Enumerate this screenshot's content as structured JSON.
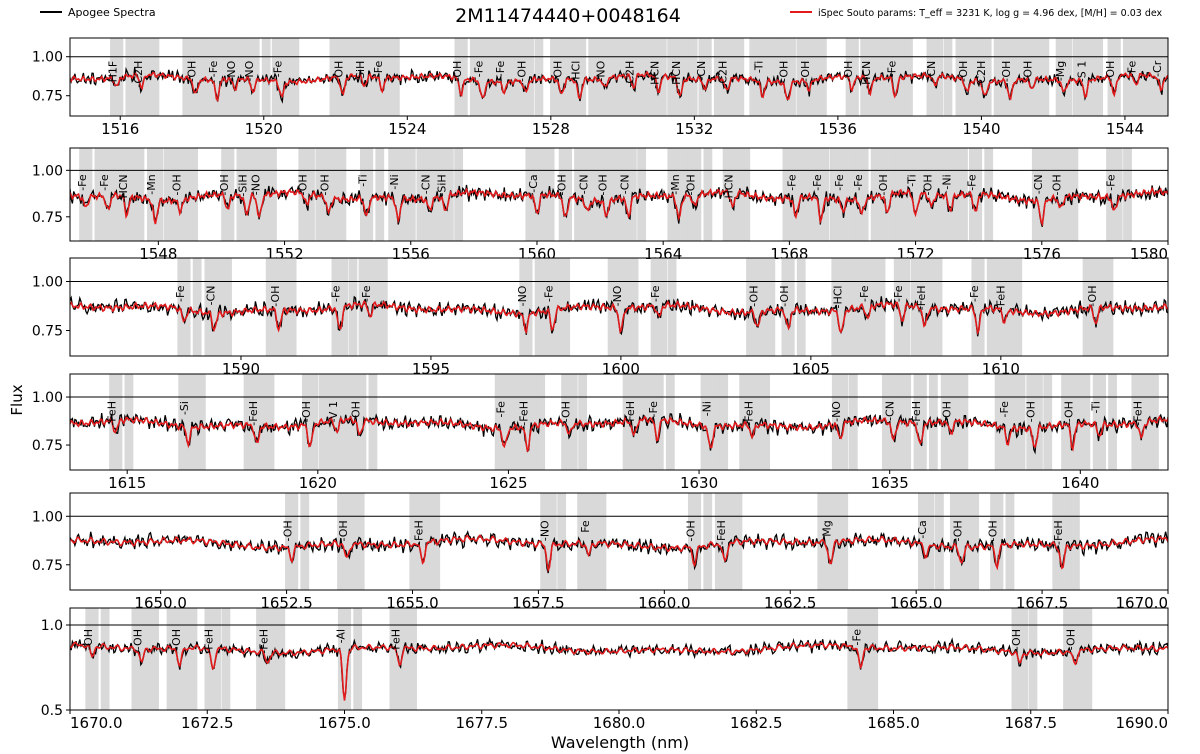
{
  "title": "2M11474440+0048164",
  "legend": {
    "observed": "Apogee Spectra",
    "model": "iSpec Souto params: T_eff = 3231 K, log g = 4.96 dex, [M/H] = 0.03 dex"
  },
  "colors": {
    "observed": "#000000",
    "model": "#e31a1c",
    "mask": "#d9d9d9"
  },
  "chart_data": {
    "type": "line",
    "title": "2M11474440+0048164",
    "xlabel": "Wavelength (nm)",
    "ylabel": "Flux",
    "series_names": [
      "Apogee Spectra",
      "iSpec Souto params: T_eff = 3231 K, log g = 4.96 dex, [M/H] = 0.03 dex"
    ],
    "legend_placement": "top",
    "panels": [
      {
        "xlim": [
          1514.6,
          1545.2
        ],
        "ylim": [
          0.62,
          1.12
        ],
        "xticks": [
          1516,
          1520,
          1524,
          1528,
          1532,
          1536,
          1540,
          1544
        ],
        "xtick_labels": [
          "1516",
          "1520",
          "1524",
          "1528",
          "1532",
          "1536",
          "1540",
          "1544"
        ],
        "yticks": [
          0.75,
          1.0
        ],
        "ytick_labels": [
          "0.75",
          "1.00"
        ],
        "lines": [
          {
            "x": 1515.9,
            "label": "-H1F"
          },
          {
            "x": 1516.6,
            "label": "-C2H"
          },
          {
            "x": 1518.1,
            "label": "-OH"
          },
          {
            "x": 1518.7,
            "label": "-Fe"
          },
          {
            "x": 1519.2,
            "label": "-NO"
          },
          {
            "x": 1519.7,
            "label": "-NO"
          },
          {
            "x": 1520.5,
            "label": "-Fe"
          },
          {
            "x": 1522.2,
            "label": "-OH"
          },
          {
            "x": 1522.8,
            "label": "-SiH"
          },
          {
            "x": 1523.3,
            "label": "-Fe"
          },
          {
            "x": 1525.5,
            "label": "-OH"
          },
          {
            "x": 1526.1,
            "label": "-Fe"
          },
          {
            "x": 1526.7,
            "label": "-Fe"
          },
          {
            "x": 1527.3,
            "label": "-OH"
          },
          {
            "x": 1528.3,
            "label": "-OH"
          },
          {
            "x": 1528.8,
            "label": "-HCl"
          },
          {
            "x": 1529.5,
            "label": "-NO"
          },
          {
            "x": 1530.3,
            "label": "-C2H"
          },
          {
            "x": 1531.0,
            "label": "-HCN"
          },
          {
            "x": 1531.6,
            "label": "-HCN"
          },
          {
            "x": 1532.3,
            "label": "-CN"
          },
          {
            "x": 1532.9,
            "label": "-C2H"
          },
          {
            "x": 1533.9,
            "label": "-Ti"
          },
          {
            "x": 1534.6,
            "label": "-OH"
          },
          {
            "x": 1535.2,
            "label": "-OH"
          },
          {
            "x": 1536.4,
            "label": "-OH"
          },
          {
            "x": 1536.9,
            "label": "-HCN"
          },
          {
            "x": 1537.6,
            "label": "-Fe"
          },
          {
            "x": 1538.7,
            "label": "-CN"
          },
          {
            "x": 1539.6,
            "label": "-OH"
          },
          {
            "x": 1540.1,
            "label": "-C2H"
          },
          {
            "x": 1540.8,
            "label": "-OH"
          },
          {
            "x": 1541.4,
            "label": "-OH"
          },
          {
            "x": 1542.3,
            "label": "-Mg"
          },
          {
            "x": 1542.9,
            "label": "-S 1"
          },
          {
            "x": 1543.7,
            "label": "-OH"
          },
          {
            "x": 1544.3,
            "label": "-Fe"
          },
          {
            "x": 1545.0,
            "label": "-Cr"
          }
        ]
      },
      {
        "xlim": [
          1545.2,
          1580.0
        ],
        "ylim": [
          0.62,
          1.12
        ],
        "xticks": [
          1548,
          1552,
          1556,
          1560,
          1564,
          1568,
          1572,
          1576,
          1580
        ],
        "xtick_labels": [
          "1548",
          "1552",
          "1556",
          "1560",
          "1564",
          "1568",
          "1572",
          "1576",
          "1580"
        ],
        "yticks": [
          0.75,
          1.0
        ],
        "ytick_labels": [
          "0.75",
          "1.00"
        ],
        "lines": [
          {
            "x": 1545.7,
            "label": "-Fe"
          },
          {
            "x": 1546.4,
            "label": "-Fe"
          },
          {
            "x": 1547.0,
            "label": "-HCN"
          },
          {
            "x": 1547.9,
            "label": "-Mn"
          },
          {
            "x": 1548.7,
            "label": "-OH"
          },
          {
            "x": 1550.2,
            "label": "-OH"
          },
          {
            "x": 1550.8,
            "label": "-SiH"
          },
          {
            "x": 1551.2,
            "label": "-NO"
          },
          {
            "x": 1552.7,
            "label": "-OH"
          },
          {
            "x": 1553.4,
            "label": "-OH"
          },
          {
            "x": 1554.6,
            "label": "-Ti"
          },
          {
            "x": 1555.6,
            "label": "-Ni"
          },
          {
            "x": 1556.6,
            "label": "-CN"
          },
          {
            "x": 1557.1,
            "label": "-SiH"
          },
          {
            "x": 1560.0,
            "label": "-Ca"
          },
          {
            "x": 1560.9,
            "label": "-OH"
          },
          {
            "x": 1561.6,
            "label": "-CN"
          },
          {
            "x": 1562.2,
            "label": "-OH"
          },
          {
            "x": 1562.9,
            "label": "-CN"
          },
          {
            "x": 1564.5,
            "label": "-Mn"
          },
          {
            "x": 1565.0,
            "label": "-OH"
          },
          {
            "x": 1566.2,
            "label": "-HCN"
          },
          {
            "x": 1568.2,
            "label": "-Fe"
          },
          {
            "x": 1569.0,
            "label": "-Fe"
          },
          {
            "x": 1569.7,
            "label": "-Fe"
          },
          {
            "x": 1570.3,
            "label": "-Fe"
          },
          {
            "x": 1571.1,
            "label": "-OH"
          },
          {
            "x": 1572.0,
            "label": "-Ti"
          },
          {
            "x": 1572.5,
            "label": "-OH"
          },
          {
            "x": 1573.1,
            "label": "-Ni"
          },
          {
            "x": 1573.9,
            "label": "-Fe"
          },
          {
            "x": 1576.0,
            "label": "-CN"
          },
          {
            "x": 1576.6,
            "label": "-OH"
          },
          {
            "x": 1578.3,
            "label": "-Fe"
          }
        ]
      },
      {
        "xlim": [
          1585.5,
          1614.4
        ],
        "ylim": [
          0.62,
          1.12
        ],
        "xticks": [
          1590,
          1595,
          1600,
          1605,
          1610
        ],
        "xtick_labels": [
          "1590",
          "1595",
          "1600",
          "1605",
          "1610"
        ],
        "yticks": [
          0.75,
          1.0
        ],
        "ytick_labels": [
          "0.75",
          "1.00"
        ],
        "lines": [
          {
            "x": 1588.5,
            "label": "-Fe"
          },
          {
            "x": 1589.3,
            "label": "-CN"
          },
          {
            "x": 1591.0,
            "label": "-OH"
          },
          {
            "x": 1592.6,
            "label": "-Fe"
          },
          {
            "x": 1593.4,
            "label": "-Fe"
          },
          {
            "x": 1597.5,
            "label": "-NO"
          },
          {
            "x": 1598.2,
            "label": "-Fe"
          },
          {
            "x": 1600.0,
            "label": "-NO"
          },
          {
            "x": 1601.0,
            "label": "-Fe"
          },
          {
            "x": 1603.6,
            "label": "-OH"
          },
          {
            "x": 1604.4,
            "label": "-OH"
          },
          {
            "x": 1605.8,
            "label": "-HCl"
          },
          {
            "x": 1606.5,
            "label": "-Fe"
          },
          {
            "x": 1607.4,
            "label": "-Fe"
          },
          {
            "x": 1608.0,
            "label": "-FeH"
          },
          {
            "x": 1609.4,
            "label": "-Fe"
          },
          {
            "x": 1610.1,
            "label": "-FeH"
          },
          {
            "x": 1612.5,
            "label": "-OH"
          }
        ]
      },
      {
        "xlim": [
          1613.5,
          1642.3
        ],
        "ylim": [
          0.62,
          1.12
        ],
        "xticks": [
          1615,
          1620,
          1625,
          1630,
          1635,
          1640
        ],
        "xtick_labels": [
          "1615",
          "1620",
          "1625",
          "1630",
          "1635",
          "1640"
        ],
        "yticks": [
          0.75,
          1.0
        ],
        "ytick_labels": [
          "0.75",
          "1.00"
        ],
        "lines": [
          {
            "x": 1614.7,
            "label": "-FeH"
          },
          {
            "x": 1616.6,
            "label": "-Si"
          },
          {
            "x": 1618.4,
            "label": "-FeH"
          },
          {
            "x": 1619.8,
            "label": "-OH"
          },
          {
            "x": 1620.5,
            "label": "-V 1"
          },
          {
            "x": 1621.1,
            "label": "-OH"
          },
          {
            "x": 1624.9,
            "label": "-Fe"
          },
          {
            "x": 1625.5,
            "label": "-FeH"
          },
          {
            "x": 1626.6,
            "label": "-OH"
          },
          {
            "x": 1628.3,
            "label": "-FeH"
          },
          {
            "x": 1628.9,
            "label": "-Fe"
          },
          {
            "x": 1630.3,
            "label": "-Ni"
          },
          {
            "x": 1631.4,
            "label": "-FeH"
          },
          {
            "x": 1633.7,
            "label": "-NO"
          },
          {
            "x": 1635.1,
            "label": "-CN"
          },
          {
            "x": 1635.8,
            "label": "-FeH"
          },
          {
            "x": 1636.6,
            "label": "-OH"
          },
          {
            "x": 1638.1,
            "label": "-Fe"
          },
          {
            "x": 1638.8,
            "label": "-OH"
          },
          {
            "x": 1639.8,
            "label": "-OH"
          },
          {
            "x": 1640.5,
            "label": "-Ti"
          },
          {
            "x": 1641.6,
            "label": "-FeH"
          }
        ]
      },
      {
        "xlim": [
          1648.2,
          1670.0
        ],
        "ylim": [
          0.62,
          1.12
        ],
        "xticks": [
          1650.0,
          1652.5,
          1655.0,
          1657.5,
          1660.0,
          1662.5,
          1665.0,
          1667.5,
          1670.0
        ],
        "xtick_labels": [
          "1650.0",
          "1652.5",
          "1655.0",
          "1657.5",
          "1660.0",
          "1662.5",
          "1665.0",
          "1667.5",
          "1670.0"
        ],
        "yticks": [
          0.75,
          1.0
        ],
        "ytick_labels": [
          "0.75",
          "1.00"
        ],
        "lines": [
          {
            "x": 1652.6,
            "label": "-OH"
          },
          {
            "x": 1653.7,
            "label": "-OH"
          },
          {
            "x": 1655.2,
            "label": "-FeH"
          },
          {
            "x": 1657.7,
            "label": "-NO"
          },
          {
            "x": 1658.5,
            "label": "Fe"
          },
          {
            "x": 1660.6,
            "label": "-OH"
          },
          {
            "x": 1661.2,
            "label": "-FeH"
          },
          {
            "x": 1663.3,
            "label": "Mg"
          },
          {
            "x": 1665.2,
            "label": "-Ca"
          },
          {
            "x": 1665.9,
            "label": "-OH"
          },
          {
            "x": 1666.6,
            "label": "-OH"
          },
          {
            "x": 1667.9,
            "label": "-FeH"
          }
        ]
      },
      {
        "xlim": [
          1670.0,
          1690.0
        ],
        "ylim": [
          0.5,
          1.1
        ],
        "xticks": [
          1670.0,
          1672.5,
          1675.0,
          1677.5,
          1680.0,
          1682.5,
          1685.0,
          1687.5,
          1690.0
        ],
        "xtick_labels": [
          "1670.0",
          "1672.5",
          "1675.0",
          "1677.5",
          "1680.0",
          "1682.5",
          "1685.0",
          "1687.5",
          "1690.0"
        ],
        "yticks": [
          0.5,
          1.0
        ],
        "ytick_labels": [
          "0.5",
          "1.0"
        ],
        "lines": [
          {
            "x": 1670.4,
            "label": "-OH"
          },
          {
            "x": 1671.3,
            "label": "-OH"
          },
          {
            "x": 1672.0,
            "label": "-OH"
          },
          {
            "x": 1672.6,
            "label": "-FeH"
          },
          {
            "x": 1673.6,
            "label": "-FeH"
          },
          {
            "x": 1675.0,
            "label": "-Al"
          },
          {
            "x": 1676.0,
            "label": "-FeH"
          },
          {
            "x": 1684.4,
            "label": "-Fe"
          },
          {
            "x": 1687.3,
            "label": "-OH"
          },
          {
            "x": 1688.3,
            "label": "-OH"
          }
        ]
      }
    ]
  }
}
